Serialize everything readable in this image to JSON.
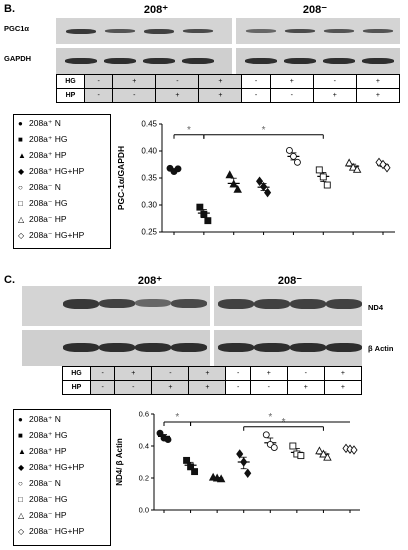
{
  "panel_b": {
    "letter": "B.",
    "group_pos": "208⁺",
    "group_neg": "208⁻",
    "proteins": [
      "PGC1α",
      "GAPDH"
    ],
    "conditions": {
      "rows": [
        {
          "label": "HG",
          "values": [
            "-",
            "+",
            "-",
            "+",
            "-",
            "+",
            "-",
            "+"
          ]
        },
        {
          "label": "HP",
          "values": [
            "-",
            "-",
            "+",
            "+",
            "-",
            "-",
            "+",
            "+"
          ]
        }
      ]
    },
    "legend": [
      {
        "symbol": "●",
        "text": "208a⁺ N"
      },
      {
        "symbol": "■",
        "text": "208a⁺ HG"
      },
      {
        "symbol": "▲",
        "text": "208a⁺ HP"
      },
      {
        "symbol": "◆",
        "text": "208a⁺ HG+HP"
      },
      {
        "symbol": "○",
        "text": "208a⁻ N"
      },
      {
        "symbol": "□",
        "text": "208a⁻ HG"
      },
      {
        "symbol": "△",
        "text": "208a⁻ HP"
      },
      {
        "symbol": "◇",
        "text": "208a⁻ HG+HP"
      }
    ]
  },
  "panel_c": {
    "letter": "C.",
    "group_pos": "208⁺",
    "group_neg": "208⁻",
    "proteins": [
      "ND4",
      "β Actin"
    ],
    "conditions": {
      "rows": [
        {
          "label": "HG",
          "values": [
            "-",
            "+",
            "-",
            "+",
            "-",
            "+",
            "-",
            "+"
          ]
        },
        {
          "label": "HP",
          "values": [
            "-",
            "-",
            "+",
            "+",
            "-",
            "-",
            "+",
            "+"
          ]
        }
      ]
    },
    "legend": [
      {
        "symbol": "●",
        "text": "208a⁺ N"
      },
      {
        "symbol": "■",
        "text": "208a⁺ HG"
      },
      {
        "symbol": "▲",
        "text": "208a⁺ HP"
      },
      {
        "symbol": "◆",
        "text": "208a⁺ HG+HP"
      },
      {
        "symbol": "○",
        "text": "208a⁻ N"
      },
      {
        "symbol": "□",
        "text": "208a⁻ HG"
      },
      {
        "symbol": "△",
        "text": "208a⁻ HP"
      },
      {
        "symbol": "◇",
        "text": "208a⁻ HG+HP"
      }
    ]
  },
  "chart_data": [
    {
      "type": "scatter",
      "ylabel": "PGC-1α/GAPDH",
      "ylim": [
        0.25,
        0.45
      ],
      "yticks": [
        "0.25",
        "0.30",
        "0.35",
        "0.40",
        "0.45"
      ],
      "significance": "*",
      "series": [
        {
          "name": "208a⁺ N",
          "marker": "circle-filled",
          "mean": 0.366,
          "points": [
            0.368,
            0.362,
            0.367
          ]
        },
        {
          "name": "208a⁺ HG",
          "marker": "square-filled",
          "mean": 0.285,
          "points": [
            0.296,
            0.283,
            0.271
          ]
        },
        {
          "name": "208a⁺ HP",
          "marker": "triangle-filled",
          "mean": 0.34,
          "points": [
            0.356,
            0.339,
            0.329
          ]
        },
        {
          "name": "208a⁺ HG+HP",
          "marker": "diamond-filled",
          "mean": 0.333,
          "points": [
            0.344,
            0.334,
            0.323
          ]
        },
        {
          "name": "208a⁻ N",
          "marker": "circle-open",
          "mean": 0.39,
          "points": [
            0.401,
            0.39,
            0.379
          ]
        },
        {
          "name": "208a⁻ HG",
          "marker": "square-open",
          "mean": 0.353,
          "points": [
            0.365,
            0.352,
            0.337
          ]
        },
        {
          "name": "208a⁻ HP",
          "marker": "triangle-open",
          "mean": 0.372,
          "points": [
            0.378,
            0.37,
            0.366
          ]
        },
        {
          "name": "208a⁻ HG+HP",
          "marker": "diamond-open",
          "mean": 0.374,
          "points": [
            0.379,
            0.375,
            0.369
          ]
        }
      ]
    },
    {
      "type": "scatter",
      "ylabel": "ND4/ β Actin",
      "ylim": [
        0.0,
        0.6
      ],
      "yticks": [
        "0.0",
        "0.2",
        "0.4",
        "0.6"
      ],
      "significance": "*",
      "series": [
        {
          "name": "208a⁺ N",
          "marker": "circle-filled",
          "mean": 0.46,
          "points": [
            0.48,
            0.45,
            0.44
          ]
        },
        {
          "name": "208a⁺ HG",
          "marker": "square-filled",
          "mean": 0.28,
          "points": [
            0.31,
            0.27,
            0.24
          ]
        },
        {
          "name": "208a⁺ HP",
          "marker": "triangle-filled",
          "mean": 0.2,
          "points": [
            0.205,
            0.2,
            0.195
          ]
        },
        {
          "name": "208a⁺ HG+HP",
          "marker": "diamond-filled",
          "mean": 0.3,
          "points": [
            0.35,
            0.3,
            0.23
          ]
        },
        {
          "name": "208a⁻ N",
          "marker": "circle-open",
          "mean": 0.42,
          "points": [
            0.47,
            0.41,
            0.39
          ]
        },
        {
          "name": "208a⁻ HG",
          "marker": "square-open",
          "mean": 0.36,
          "points": [
            0.4,
            0.35,
            0.34
          ]
        },
        {
          "name": "208a⁻ HP",
          "marker": "triangle-open",
          "mean": 0.35,
          "points": [
            0.37,
            0.35,
            0.33
          ]
        },
        {
          "name": "208a⁻ HG+HP",
          "marker": "diamond-open",
          "mean": 0.38,
          "points": [
            0.385,
            0.38,
            0.375
          ]
        }
      ]
    }
  ]
}
